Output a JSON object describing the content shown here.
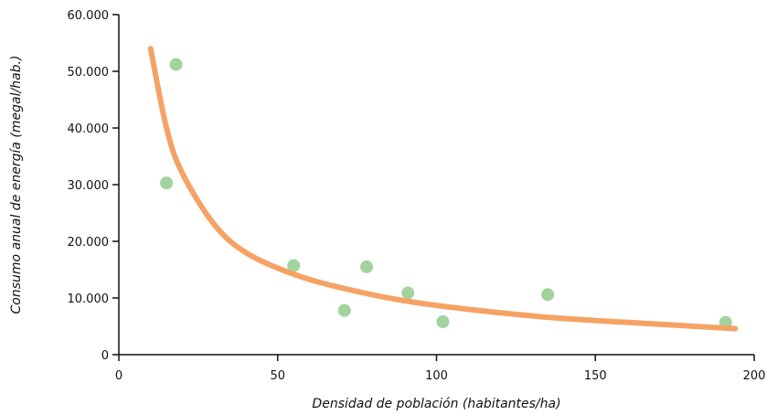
{
  "chart_data": {
    "type": "scatter",
    "title": "",
    "xlabel": "Densidad de población (habitantes/ha)",
    "ylabel": "Consumo anual de energía (megal/hab.)",
    "xlim": [
      0,
      200
    ],
    "ylim": [
      0,
      60000
    ],
    "x_ticks": [
      0,
      50,
      100,
      150,
      200
    ],
    "x_tick_labels": [
      "0",
      "50",
      "100",
      "150",
      "200"
    ],
    "y_ticks": [
      0,
      10000,
      20000,
      30000,
      40000,
      50000,
      60000
    ],
    "y_tick_labels": [
      "0",
      "10.000",
      "20.000",
      "30.000",
      "40.000",
      "50.000",
      "60.000"
    ],
    "grid": false,
    "series": [
      {
        "type": "scatter",
        "color": "#a3d39c",
        "points": [
          {
            "x": 15,
            "y": 30300
          },
          {
            "x": 18,
            "y": 51200
          },
          {
            "x": 55,
            "y": 15700
          },
          {
            "x": 71,
            "y": 7800
          },
          {
            "x": 78,
            "y": 15500
          },
          {
            "x": 91,
            "y": 10900
          },
          {
            "x": 102,
            "y": 5800
          },
          {
            "x": 135,
            "y": 10600
          },
          {
            "x": 191,
            "y": 5700
          }
        ]
      },
      {
        "type": "line",
        "color": "#f5a264",
        "points": [
          {
            "x": 10,
            "y": 54000
          },
          {
            "x": 15,
            "y": 40000
          },
          {
            "x": 20,
            "y": 32000
          },
          {
            "x": 30,
            "y": 23000
          },
          {
            "x": 40,
            "y": 18000
          },
          {
            "x": 55,
            "y": 14200
          },
          {
            "x": 70,
            "y": 11800
          },
          {
            "x": 90,
            "y": 9500
          },
          {
            "x": 110,
            "y": 8000
          },
          {
            "x": 135,
            "y": 6600
          },
          {
            "x": 160,
            "y": 5700
          },
          {
            "x": 194,
            "y": 4600
          }
        ]
      }
    ]
  }
}
